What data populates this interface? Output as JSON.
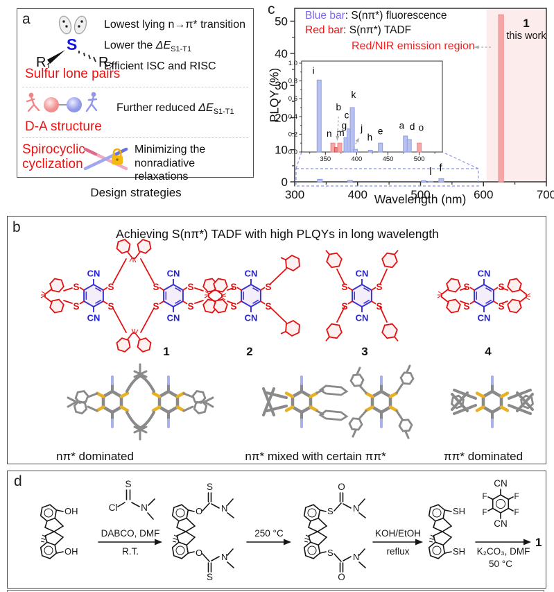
{
  "panel_a": {
    "label": "a",
    "caption": "Design strategies",
    "sulfur": {
      "r": "R",
      "r1_sub": "1",
      "r2_sub": "2",
      "s": "S",
      "title": "Sulfur lone pairs",
      "line1": "Lowest lying n→π* transition",
      "line2_pre": "Lower the ",
      "delta_e": "ΔE",
      "delta_sub": "S1-T1",
      "line3": "Efficient ISC and RISC"
    },
    "da": {
      "title": "D-A  structure",
      "point_pre": "Further reduced ",
      "delta_e": "ΔE",
      "delta_sub": "S1-T1"
    },
    "spiro": {
      "title1": "Spirocyclic",
      "title2": "cyclization",
      "point1": "Minimizing the",
      "point2": "nonradiative relaxations"
    }
  },
  "panel_c": {
    "label": "c"
  },
  "chart_data": {
    "type": "bar",
    "xlabel": "Wavelength (nm)",
    "ylabel": "PLQY (%)",
    "xlim": [
      300,
      700
    ],
    "ylim": [
      0,
      54
    ],
    "xticks": [
      300,
      400,
      500,
      600,
      700
    ],
    "yticks": [
      0,
      10,
      20,
      30,
      40,
      50
    ],
    "legend": [
      {
        "label": "Blue bar",
        "color": "#7a66ee",
        "rest": ": S(nπ*) fluorescence"
      },
      {
        "label": "Red bar",
        "color": "#ee1111",
        "rest": ": S(nπ*) TADF"
      }
    ],
    "region": {
      "x0": 605,
      "x1": 700,
      "color": "#fdecec",
      "label": "Red/NIR emission region"
    },
    "highlight": {
      "line1": "1",
      "line2": "this work",
      "x": 628,
      "value": 52
    },
    "bar_colors": {
      "blue": {
        "fill": "#b9c2ef",
        "edge": "#8d9de4"
      },
      "red": {
        "fill": "#f6a6a6",
        "edge": "#ef8585"
      },
      "red2": {
        "fill": "#e88585",
        "edge": "#d05555"
      }
    },
    "bars": [
      {
        "x": 340,
        "v": 0.8,
        "c": "blue"
      },
      {
        "x": 388,
        "v": 0.5,
        "c": "blue"
      },
      {
        "x": 505,
        "v": 0.35,
        "c": "blue"
      },
      {
        "x": 516,
        "v": 0.15,
        "c": "blue",
        "label": "l",
        "lx": 516,
        "ly": 2.2
      },
      {
        "x": 533,
        "v": 1.0,
        "c": "blue",
        "label": "f",
        "lx": 532,
        "ly": 3.4
      },
      {
        "x": 628,
        "v": 52,
        "c": "red"
      }
    ],
    "inset": {
      "xlim": [
        312,
        537
      ],
      "ylim": [
        0,
        1
      ],
      "xticks": [
        350,
        400,
        450,
        500
      ],
      "yticks": [
        0,
        0.2,
        0.4,
        0.6,
        0.8,
        1
      ],
      "bars": [
        {
          "x": 340,
          "v": 0.81,
          "c": "blue",
          "label": "i",
          "lx": 331,
          "ly": 0.88
        },
        {
          "x": 362,
          "v": 0.1,
          "c": "red",
          "label": "n",
          "lx": 356,
          "ly": 0.17
        },
        {
          "x": 368,
          "v": 0.05,
          "c": "red2",
          "label": "b",
          "lx": 371,
          "ly": 0.47
        },
        {
          "x": 373,
          "v": 0.1,
          "c": "red",
          "label": "m",
          "lx": 374,
          "ly": 0.18
        },
        {
          "x": 383,
          "v": 0.16,
          "c": "blue",
          "label": "g",
          "lx": 380,
          "ly": 0.26
        },
        {
          "x": 388,
          "v": 0.26,
          "c": "blue",
          "label": "c",
          "lx": 384,
          "ly": 0.38
        },
        {
          "x": 393,
          "v": 0.5,
          "c": "blue",
          "label": "k",
          "lx": 395,
          "ly": 0.61
        },
        {
          "x": 398,
          "v": 0.03,
          "c": "blue",
          "label": "j",
          "lx": 408,
          "ly": 0.23
        },
        {
          "x": 422,
          "v": 0.02,
          "c": "blue",
          "label": "h",
          "lx": 421,
          "ly": 0.13
        },
        {
          "x": 438,
          "v": 0.1,
          "c": "blue",
          "label": "e",
          "lx": 438,
          "ly": 0.2
        },
        {
          "x": 478,
          "v": 0.18,
          "c": "blue",
          "label": "a",
          "lx": 472,
          "ly": 0.26
        },
        {
          "x": 484,
          "v": 0.14,
          "c": "blue",
          "label": "d",
          "lx": 489,
          "ly": 0.25
        },
        {
          "x": 500,
          "v": 0.1,
          "c": "red",
          "label": "o",
          "lx": 503,
          "ly": 0.24
        }
      ],
      "arrows": [
        {
          "x1": 371,
          "y1": 0.4,
          "x2": 369,
          "y2": 0.13
        },
        {
          "x1": 395,
          "y1": 0.05,
          "x2": 404,
          "y2": 0.16
        }
      ]
    }
  },
  "panel_b": {
    "label": "b",
    "title": "Achieving S(nπ*) TADF with high PLQYs in long wavelength",
    "compound_labels": [
      "1",
      "2",
      "3",
      "4"
    ],
    "bottom_labels": [
      "nπ* dominated",
      "nπ* mixed with certain ππ*",
      "ππ* dominated"
    ]
  },
  "panel_d": {
    "label": "d",
    "steps": {
      "r1_line1": "DABCO, DMF",
      "r1_line2": "R.T.",
      "r2": "250 °C",
      "r3_line1": "KOH/EtOH",
      "r3_line2": "reflux",
      "r4_line1": "K₂CO₃, DMF",
      "r4_line2": "50 °C",
      "product": "1"
    }
  },
  "chem": {
    "CN": "CN",
    "S": "S",
    "O": "O",
    "N": "N",
    "Cl": "Cl",
    "F": "F",
    "OH": "OH",
    "SH": "SH"
  }
}
